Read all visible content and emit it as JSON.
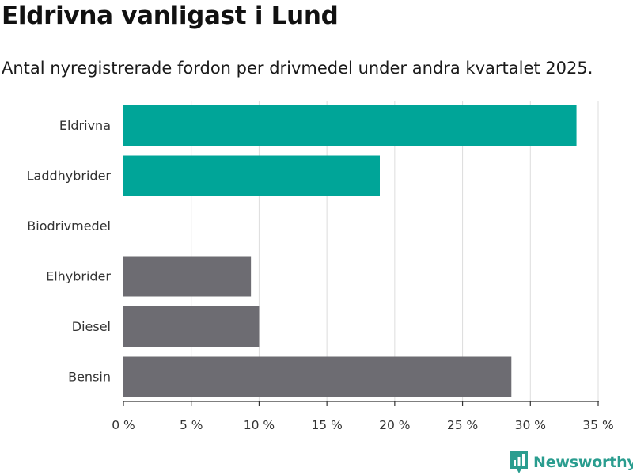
{
  "title": "Eldrivna vanligast i Lund",
  "subtitle": "Antal nyregistrerade fordon per drivmedel under andra kvartalet 2025.",
  "brand": "Newsworthy",
  "colors": {
    "highlight": "#00a598",
    "default": "#6d6c72",
    "grid": "#dddddd",
    "brand": "#2a9d8f"
  },
  "chart_data": {
    "type": "bar",
    "orientation": "horizontal",
    "categories": [
      "Eldrivna",
      "Laddhybrider",
      "Biodrivmedel",
      "Elhybrider",
      "Diesel",
      "Bensin"
    ],
    "values": [
      33.4,
      18.9,
      0,
      9.4,
      10.0,
      28.6
    ],
    "highlighted": [
      true,
      true,
      true,
      false,
      false,
      false
    ],
    "xlim": [
      0,
      35
    ],
    "xticks": [
      0,
      5,
      10,
      15,
      20,
      25,
      30,
      35
    ],
    "xtick_labels": [
      "0 %",
      "5 %",
      "10 %",
      "15 %",
      "20 %",
      "25 %",
      "30 %",
      "35 %"
    ],
    "grid": true
  }
}
